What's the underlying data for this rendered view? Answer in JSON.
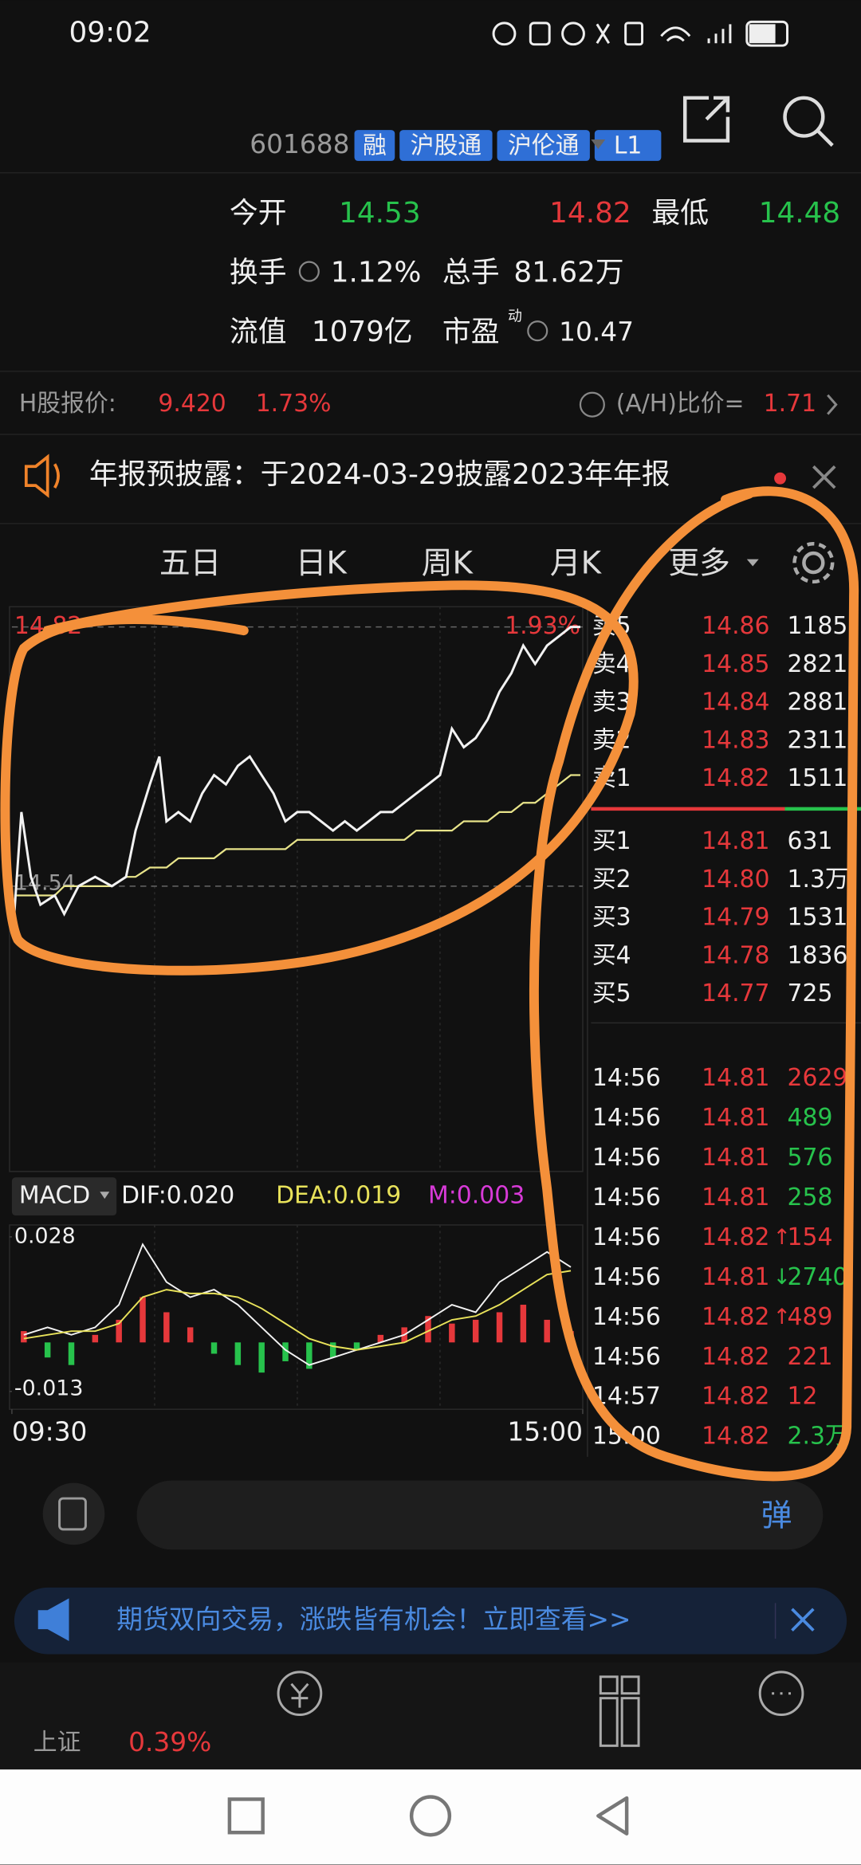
{
  "status_bar": {
    "time": "09:02"
  },
  "header": {
    "code": "601688",
    "tags": [
      "融",
      "沪股通",
      "沪伦通",
      "L1"
    ]
  },
  "quote": {
    "open_label": "今开",
    "open": "14.53",
    "price": "14.82",
    "low_label": "最低",
    "low": "14.48",
    "turnover_label": "换手",
    "turnover": "1.12%",
    "volume_label": "总手",
    "volume": "81.62万",
    "float_label": "流值",
    "float_cap": "1079亿",
    "pe_label": "市盈",
    "pe_sup": "动",
    "pe": "10.47"
  },
  "h_share": {
    "label": "H股报价:",
    "price": "9.420",
    "change": "1.73%",
    "ratio_label": "(A/H)比价=",
    "ratio": "1.71"
  },
  "notice": {
    "text": "年报预披露：于2024-03-29披露2023年年报"
  },
  "tabs": [
    "五日",
    "日K",
    "周K",
    "月K",
    "更多"
  ],
  "chart_data": [
    {
      "type": "line",
      "x": [
        1,
        4,
        8,
        12,
        18,
        22,
        28,
        35,
        42,
        48,
        52,
        58,
        62,
        65,
        70,
        75,
        80,
        85,
        90,
        95,
        100,
        105,
        110,
        115,
        120,
        125,
        130,
        135,
        140,
        145,
        150,
        155,
        160,
        165,
        170,
        175,
        180,
        185,
        190,
        195,
        200,
        205,
        210,
        215,
        220,
        225,
        230,
        235,
        239
      ],
      "xlim": [
        0,
        240
      ],
      "ylim": [
        14.26,
        14.82
      ],
      "yticks": [
        {
          "value": 14.82,
          "label": "14.82"
        },
        {
          "value": 14.54,
          "label": "14.54"
        }
      ],
      "annotation": "1.93%",
      "series": [
        {
          "color": "#f2f2f2",
          "values": [
            14.51,
            14.62,
            14.55,
            14.52,
            14.53,
            14.51,
            14.54,
            14.55,
            14.54,
            14.55,
            14.6,
            14.65,
            14.68,
            14.61,
            14.62,
            14.61,
            14.64,
            14.66,
            14.65,
            14.67,
            14.68,
            14.66,
            14.64,
            14.61,
            14.62,
            14.62,
            14.61,
            14.6,
            14.61,
            14.6,
            14.61,
            14.62,
            14.62,
            14.63,
            14.64,
            14.65,
            14.66,
            14.71,
            14.69,
            14.7,
            14.72,
            14.75,
            14.77,
            14.8,
            14.78,
            14.8,
            14.81,
            14.82,
            14.82
          ]
        },
        {
          "color": "#e8e48a",
          "values": [
            14.53,
            14.53,
            14.53,
            14.53,
            14.53,
            14.54,
            14.54,
            14.54,
            14.54,
            14.55,
            14.55,
            14.56,
            14.56,
            14.56,
            14.57,
            14.57,
            14.57,
            14.57,
            14.58,
            14.58,
            14.58,
            14.58,
            14.58,
            14.58,
            14.59,
            14.59,
            14.59,
            14.59,
            14.59,
            14.59,
            14.59,
            14.59,
            14.59,
            14.59,
            14.6,
            14.6,
            14.6,
            14.6,
            14.61,
            14.61,
            14.61,
            14.62,
            14.62,
            14.63,
            14.63,
            14.64,
            14.65,
            14.66,
            14.66
          ]
        }
      ]
    },
    {
      "type": "macd",
      "title": "MACD",
      "x": [
        0,
        10,
        20,
        30,
        40,
        50,
        60,
        70,
        80,
        90,
        100,
        110,
        120,
        130,
        140,
        150,
        160,
        170,
        180,
        190,
        200,
        210,
        220,
        230
      ],
      "xlim": [
        0,
        240
      ],
      "xticks": [
        {
          "value": 0,
          "label": "09:30"
        },
        {
          "value": 240,
          "label": "15:00"
        }
      ],
      "ylim": [
        -0.013,
        0.028
      ],
      "yticks": [
        {
          "value": 0.028,
          "label": "0.028"
        },
        {
          "value": -0.013,
          "label": "-0.013"
        }
      ],
      "series": [
        {
          "name": "DIF:0.020",
          "color": "#f2f2f2",
          "values": [
            0.002,
            0.004,
            0.002,
            0.004,
            0.01,
            0.026,
            0.016,
            0.012,
            0.014,
            0.01,
            0.004,
            -0.002,
            -0.006,
            -0.004,
            -0.002,
            0.0,
            0.002,
            0.006,
            0.01,
            0.008,
            0.016,
            0.02,
            0.024,
            0.02
          ]
        },
        {
          "name": "DEA:0.019",
          "color": "#e8e25a",
          "values": [
            0.001,
            0.002,
            0.003,
            0.003,
            0.005,
            0.012,
            0.014,
            0.013,
            0.013,
            0.012,
            0.009,
            0.005,
            0.001,
            -0.001,
            -0.002,
            -0.001,
            0.0,
            0.003,
            0.006,
            0.007,
            0.01,
            0.014,
            0.018,
            0.019
          ]
        },
        {
          "name": "M:0.003",
          "color": "#d83ad8",
          "up_color": "#e6383b",
          "down_color": "#27c24c",
          "values": [
            0.003,
            -0.004,
            -0.006,
            0.002,
            0.006,
            0.012,
            0.008,
            0.004,
            -0.003,
            -0.006,
            -0.008,
            -0.005,
            -0.007,
            -0.004,
            -0.002,
            0.002,
            0.004,
            0.007,
            0.005,
            0.006,
            0.008,
            0.01,
            0.006,
            0.003
          ]
        }
      ]
    }
  ],
  "order_book": {
    "sells": [
      {
        "label": "卖5",
        "price": "14.86",
        "volume": "1185"
      },
      {
        "label": "卖4",
        "price": "14.85",
        "volume": "2821"
      },
      {
        "label": "卖3",
        "price": "14.84",
        "volume": "2881"
      },
      {
        "label": "卖2",
        "price": "14.83",
        "volume": "2311"
      },
      {
        "label": "卖1",
        "price": "14.82",
        "volume": "1511"
      }
    ],
    "buys": [
      {
        "label": "买1",
        "price": "14.81",
        "volume": "631"
      },
      {
        "label": "买2",
        "price": "14.80",
        "volume": "1.3万"
      },
      {
        "label": "买3",
        "price": "14.79",
        "volume": "1531"
      },
      {
        "label": "买4",
        "price": "14.78",
        "volume": "1836"
      },
      {
        "label": "买5",
        "price": "14.77",
        "volume": "725"
      }
    ]
  },
  "trades": [
    {
      "time": "14:56",
      "price": "14.81",
      "volume": "2629",
      "color": "#e6383b"
    },
    {
      "time": "14:56",
      "price": "14.81",
      "volume": "489",
      "color": "#27c24c"
    },
    {
      "time": "14:56",
      "price": "14.81",
      "volume": "576",
      "color": "#27c24c"
    },
    {
      "time": "14:56",
      "price": "14.81",
      "volume": "258",
      "color": "#27c24c"
    },
    {
      "time": "14:56",
      "price": "14.82",
      "arrow": "↑",
      "volume": "154",
      "color": "#e6383b"
    },
    {
      "time": "14:56",
      "price": "14.81",
      "arrow": "↓",
      "volume": "2740",
      "color": "#27c24c"
    },
    {
      "time": "14:56",
      "price": "14.82",
      "arrow": "↑",
      "volume": "489",
      "color": "#e6383b"
    },
    {
      "time": "14:56",
      "price": "14.82",
      "volume": "221",
      "color": "#e6383b"
    },
    {
      "time": "14:57",
      "price": "14.82",
      "volume": "12",
      "color": "#e6383b"
    },
    {
      "time": "15:00",
      "price": "14.82",
      "volume": "2.3万",
      "color": "#27c24c"
    }
  ],
  "comment_bar": {
    "badge": "弹"
  },
  "banner": {
    "text": "期货双向交易，涨跌皆有机会！立即查看>>"
  },
  "bottom_nav": {
    "index_name": "上证",
    "index_change": "0.39%"
  }
}
